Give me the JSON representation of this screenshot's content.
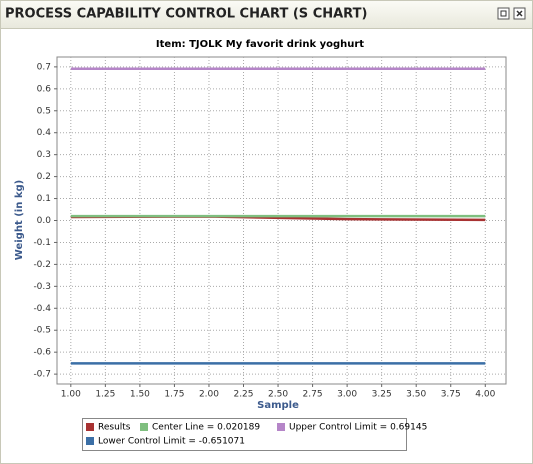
{
  "window_title": "PROCESS CAPABILITY CONTROL CHART (S CHART)",
  "chart_data": {
    "type": "line",
    "title": "Item: TJOLK My favorit drink yoghurt",
    "x_label": "Sample",
    "y_label": "Weight (in kg)",
    "x": [
      1,
      2,
      3,
      4
    ],
    "series": [
      {
        "name": "Results",
        "color": "#a83232",
        "values": [
          0.016,
          0.018,
          0.006,
          0.003
        ]
      },
      {
        "name": "Center Line = 0.020189",
        "color": "#7fbf7f",
        "values": [
          0.020189,
          0.020189,
          0.020189,
          0.020189
        ]
      },
      {
        "name": "Upper Control Limit = 0.69145",
        "color": "#b585c8",
        "values": [
          0.69145,
          0.69145,
          0.69145,
          0.69145
        ]
      },
      {
        "name": "Lower Control Limit = -0.651071",
        "color": "#3b6fa6",
        "values": [
          -0.651071,
          -0.651071,
          -0.651071,
          -0.651071
        ]
      }
    ],
    "xlim": [
      0.9,
      4.15
    ],
    "xticks": [
      {
        "value": 1,
        "label": "1.00"
      },
      {
        "value": 1.25,
        "label": "1.25"
      },
      {
        "value": 1.5,
        "label": "1.50"
      },
      {
        "value": 1.75,
        "label": "1.75"
      },
      {
        "value": 2,
        "label": "2.00"
      },
      {
        "value": 2.25,
        "label": "2.25"
      },
      {
        "value": 2.5,
        "label": "2.50"
      },
      {
        "value": 2.75,
        "label": "2.75"
      },
      {
        "value": 3,
        "label": "3.00"
      },
      {
        "value": 3.25,
        "label": "3.25"
      },
      {
        "value": 3.5,
        "label": "3.50"
      },
      {
        "value": 3.75,
        "label": "3.75"
      },
      {
        "value": 4,
        "label": "4.00"
      }
    ],
    "ylim": [
      -0.745,
      0.745
    ],
    "yticks": [
      0.7,
      0.6,
      0.5,
      0.4,
      0.3,
      0.2,
      0.1,
      {
        "value": 0,
        "label": "0.0"
      },
      -0.1,
      -0.2,
      -0.3,
      -0.4,
      -0.5,
      -0.6,
      -0.7
    ],
    "grid": true
  }
}
